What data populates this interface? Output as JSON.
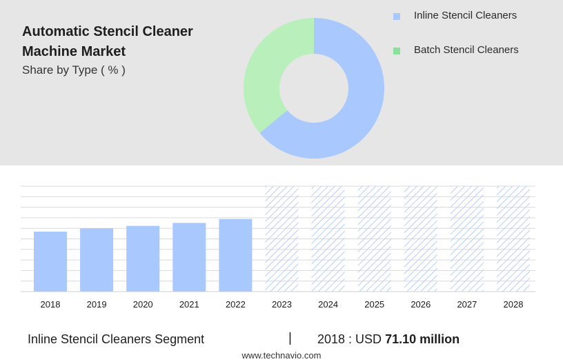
{
  "header": {
    "title": "Automatic Stencil Cleaner Machine Market",
    "subtitle": "Share by Type ( % )"
  },
  "colors": {
    "inline": "#a9c8fe",
    "batch": "#b8efba",
    "batch_legend": "#88e29a",
    "forecast_hatch": "#b8cff5",
    "grid": "#d9d9d9"
  },
  "footer": {
    "segment": "Inline Stencil Cleaners Segment",
    "separator": "|",
    "value_prefix": "2018 : USD ",
    "value_bold": "71.10 million",
    "source": "www.technavio.com"
  },
  "chart_data": [
    {
      "type": "pie",
      "variant": "donut",
      "categories": [
        "Inline Stencil Cleaners",
        "Batch Stencil Cleaners"
      ],
      "values": [
        64,
        36
      ],
      "legend_position": "top-right"
    },
    {
      "type": "bar",
      "categories": [
        "2018",
        "2019",
        "2020",
        "2021",
        "2022",
        "2023",
        "2024",
        "2025",
        "2026",
        "2027",
        "2028"
      ],
      "values": [
        71.1,
        75.1,
        77.9,
        81.4,
        86.1,
        null,
        null,
        null,
        null,
        null,
        null
      ],
      "forecast_categories": [
        "2023",
        "2024",
        "2025",
        "2026",
        "2027",
        "2028"
      ],
      "ylim": [
        0,
        125
      ],
      "grid": true
    }
  ]
}
